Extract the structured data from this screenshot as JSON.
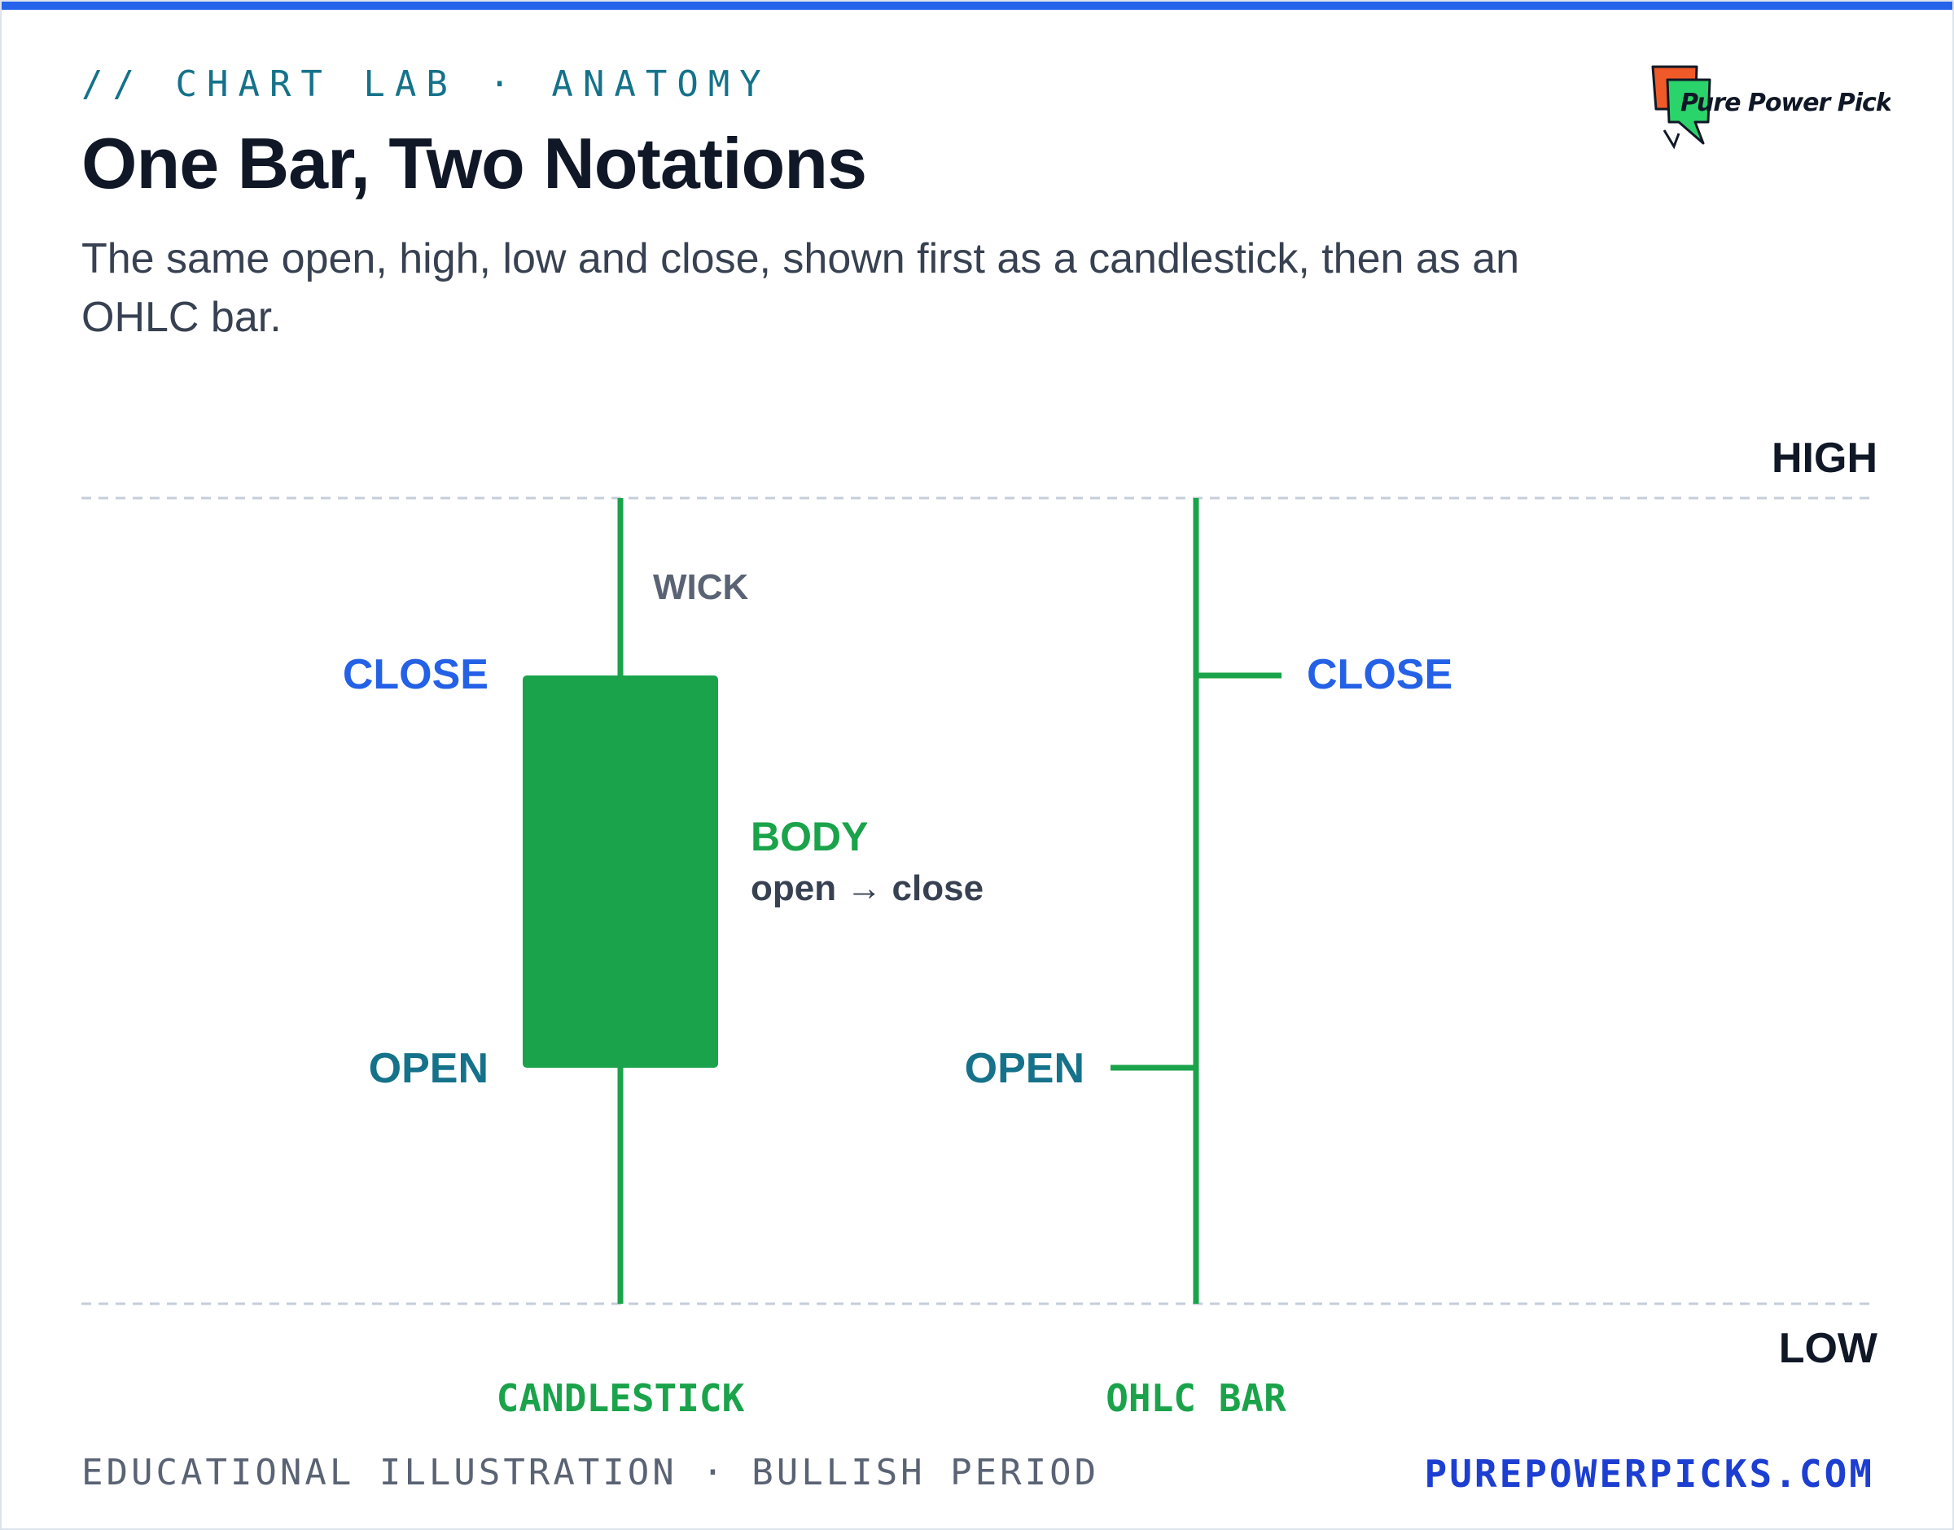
{
  "header": {
    "kicker": "// CHART LAB · ANATOMY",
    "title": "One Bar, Two Notations",
    "subtitle": "The same open, high, low and close, shown first as a candlestick, then as an OHLC bar."
  },
  "logo": {
    "text": "Pure Power Picks"
  },
  "diagram": {
    "levels": {
      "high_label": "HIGH",
      "low_label": "LOW"
    },
    "candlestick": {
      "caption": "CANDLESTICK",
      "wick_label": "WICK",
      "close_label": "CLOSE",
      "open_label": "OPEN",
      "body_label": "BODY",
      "body_sub": "open → close"
    },
    "ohlc": {
      "caption": "OHLC BAR",
      "close_label": "CLOSE",
      "open_label": "OPEN"
    },
    "colors": {
      "bullish_green": "#1aa34a",
      "close_blue": "#2461e6",
      "open_teal": "#15728a",
      "label_dark": "#101827",
      "grid_dash": "#c5ced9"
    }
  },
  "footer": {
    "left": "EDUCATIONAL ILLUSTRATION · BULLISH PERIOD",
    "right": "PUREPOWERPICKS.COM"
  }
}
